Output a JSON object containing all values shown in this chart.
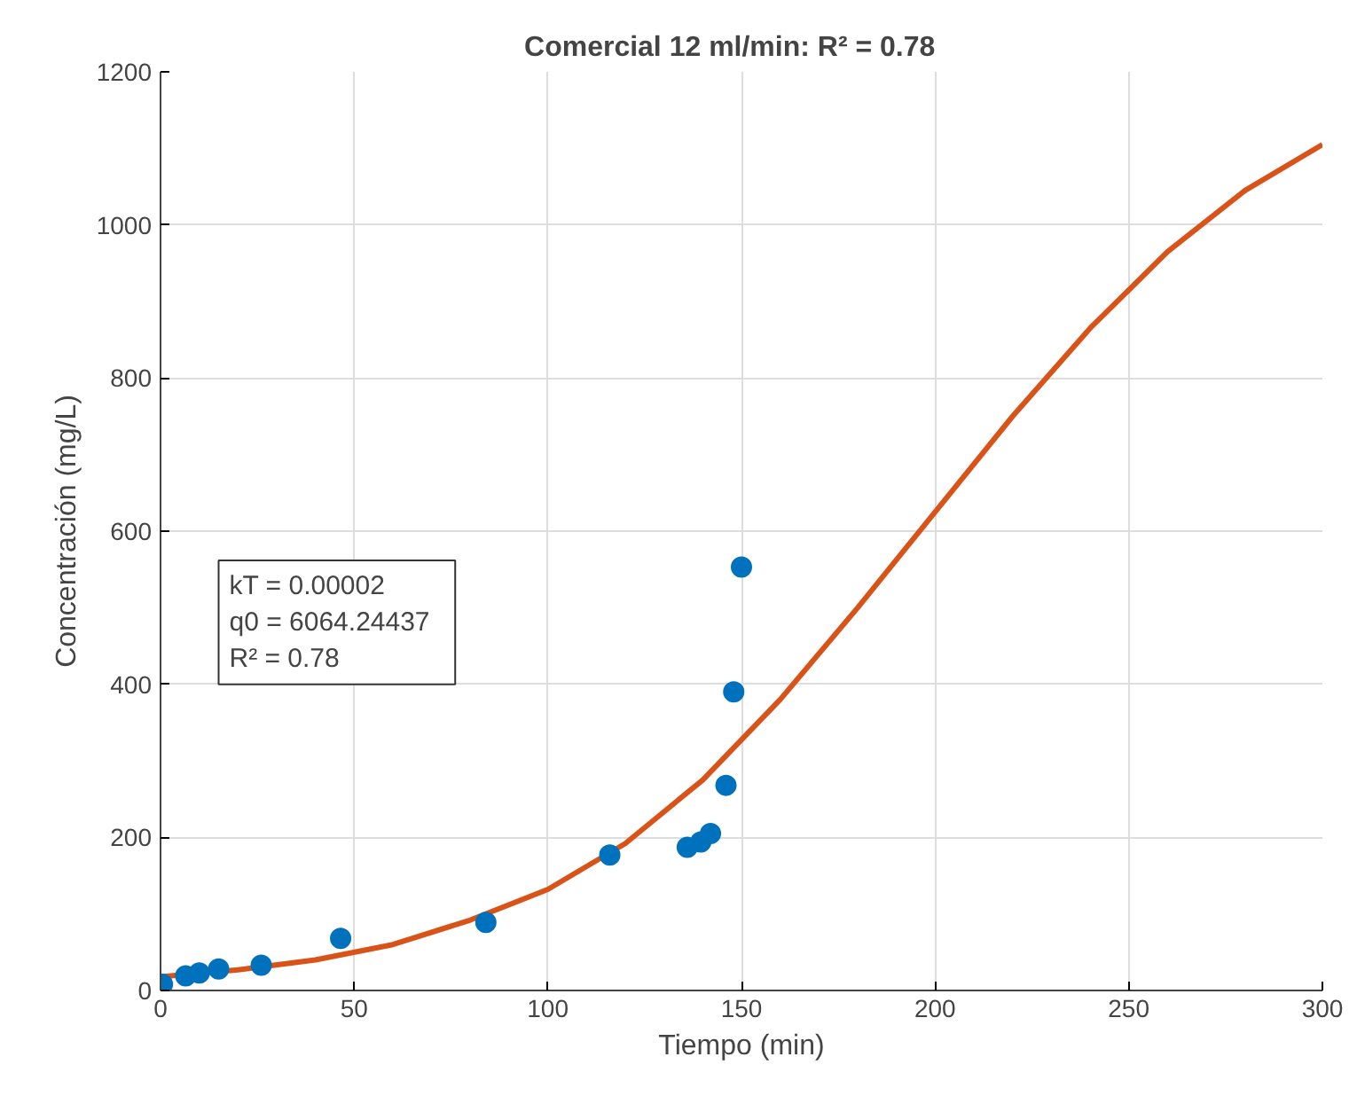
{
  "chart_data": {
    "type": "scatter",
    "title": "Comercial  12  ml/min:  R² = 0.78",
    "xlabel": "Tiempo (min)",
    "ylabel": "Concentración (mg/L)",
    "xlim": [
      0,
      300
    ],
    "xticks": [
      0,
      50,
      100,
      150,
      200,
      250,
      300
    ],
    "ylim": [
      0,
      1200
    ],
    "yticks": [
      0,
      200,
      400,
      600,
      800,
      1000,
      1200
    ],
    "grid": true,
    "annotations": [
      "kT  =  0.00002",
      "q0  =  6064.24437",
      "R²  =  0.78"
    ],
    "series": [
      {
        "marker": "circle",
        "color": "#0072bd",
        "x": [
          0.5,
          6.5,
          10,
          15,
          26,
          46.5,
          84,
          116,
          136,
          139.5,
          142,
          146,
          148,
          150
        ],
        "values": [
          8,
          19,
          23,
          28,
          33,
          68,
          89,
          177,
          187,
          194,
          205,
          268,
          390,
          553
        ]
      },
      {
        "type": "line",
        "marker": "none",
        "color": "#d95319",
        "line_style": "solid",
        "x": [
          0,
          20,
          40,
          60,
          80,
          100,
          120,
          140,
          160,
          180,
          200,
          220,
          240,
          260,
          280,
          300
        ],
        "values": [
          18,
          27,
          40,
          60,
          92,
          132,
          192,
          275,
          380,
          500,
          625,
          750,
          865,
          965,
          1045,
          1105
        ]
      }
    ]
  }
}
